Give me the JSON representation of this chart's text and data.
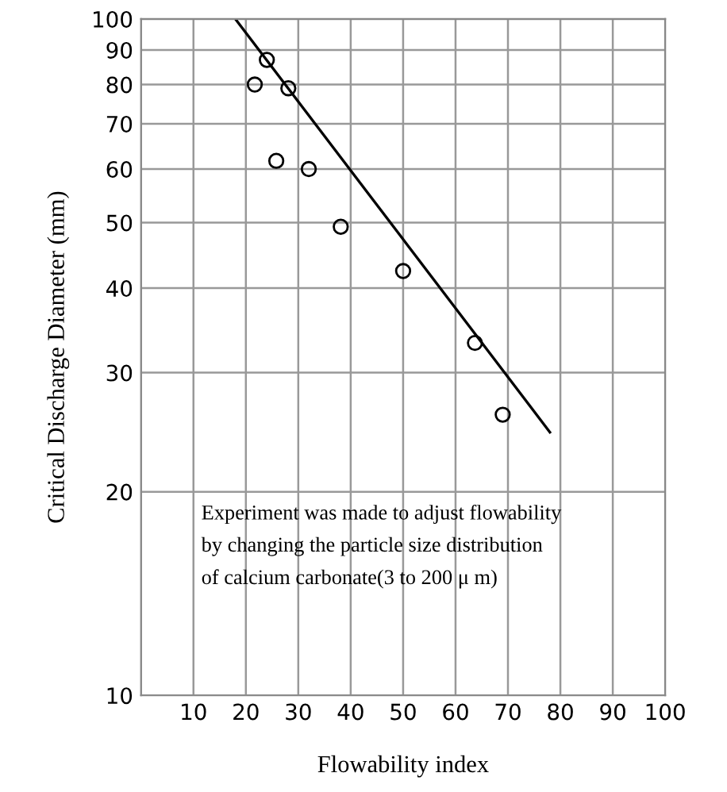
{
  "chart_data": {
    "type": "scatter",
    "xlabel": "Flowability index",
    "ylabel": "Critical Discharge Diameter (mm)",
    "annotations": [
      "Experiment was made to adjust flowability\nby changing the particle size distribution\nof calcium carbonate(3 to 200 μ m)"
    ],
    "series": [
      {
        "color": "#000000",
        "x": [
          21.7,
          24.0,
          28.1,
          25.8,
          32.0,
          38.1,
          50.0,
          63.7,
          69.0
        ],
        "values": [
          80,
          87,
          79,
          61.7,
          60,
          49.3,
          42.4,
          33.2,
          26
        ]
      },
      {
        "type": "line",
        "color": "#000000",
        "marker": "none",
        "x": [
          18,
          78
        ],
        "values": [
          100,
          24.5
        ]
      }
    ],
    "log": "y",
    "xlim": [
      0,
      100
    ],
    "ylim": [
      10,
      100
    ],
    "xticks": [
      {
        "value": 0,
        "label": null
      },
      10,
      20,
      30,
      40,
      50,
      60,
      70,
      80,
      90,
      100
    ],
    "yticks": [
      10,
      20,
      30,
      40,
      50,
      60,
      70,
      80,
      90,
      100
    ],
    "grid": true,
    "marker": "circle",
    "line_style": "solid"
  }
}
